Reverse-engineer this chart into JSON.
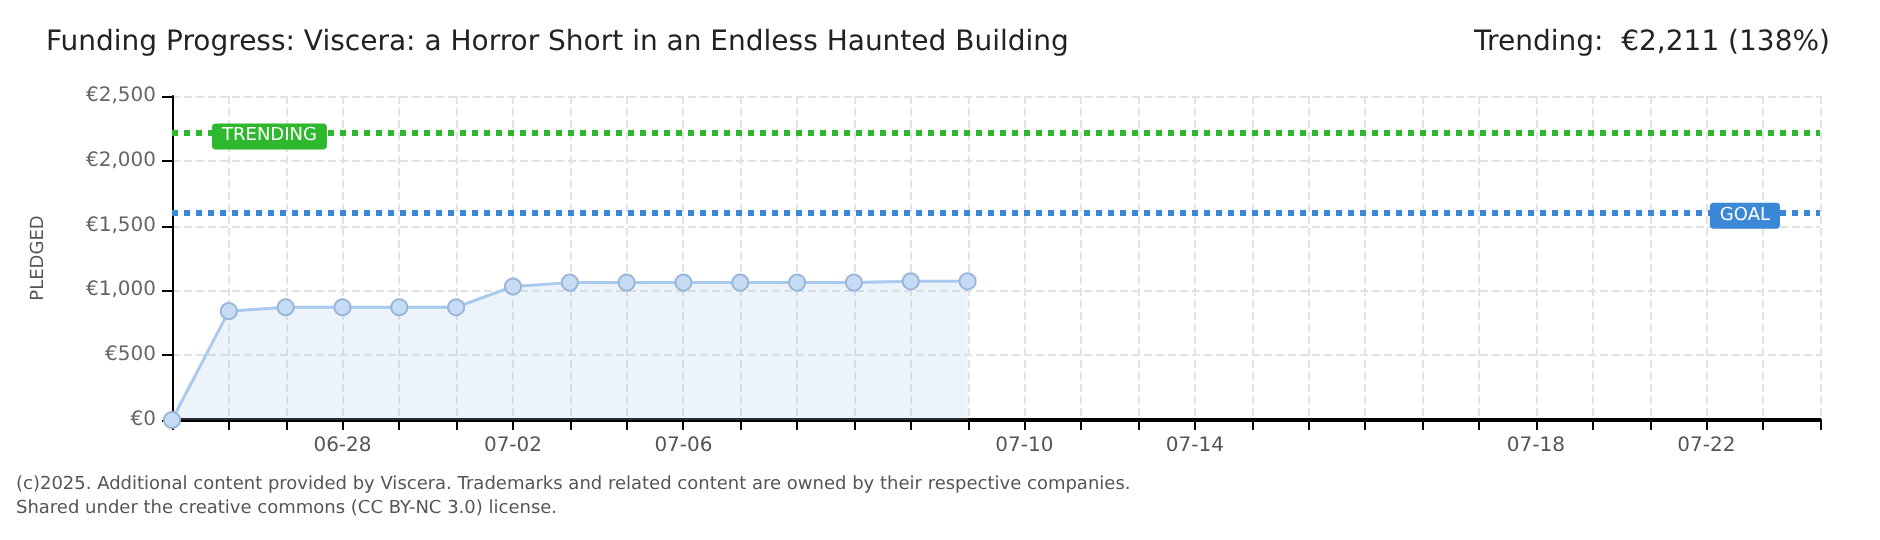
{
  "chart_data": {
    "type": "area",
    "title": "Funding Progress: Viscera: a Horror Short in an Endless Haunted Building",
    "subtitle": "Trending:  €2,211 (138%)",
    "ylabel": "PLEDGED",
    "categories": [
      null,
      null,
      null,
      "06-28",
      null,
      null,
      "07-02",
      null,
      null,
      "07-06",
      null,
      null,
      null,
      null,
      null,
      "07-10",
      null,
      null,
      "07-14",
      null,
      null,
      null,
      null,
      null,
      "07-18",
      null,
      null,
      "07-22",
      null,
      null
    ],
    "series": [
      {
        "color": "#a9c9ee",
        "values": [
          0,
          840,
          870,
          870,
          870,
          870,
          1030,
          1060,
          1060,
          1060,
          1060,
          1060,
          1060,
          1070,
          1070,
          null,
          null,
          null,
          null,
          null,
          null,
          null,
          null,
          null,
          null,
          null,
          null,
          null,
          null,
          null
        ]
      }
    ],
    "ylim": [
      0,
      2500
    ],
    "yticks": [
      {
        "value": 0,
        "label": "€0"
      },
      {
        "value": 500,
        "label": "€500"
      },
      {
        "value": 1000,
        "label": "€1,000"
      },
      {
        "value": 1500,
        "label": "€1,500"
      },
      {
        "value": 2000,
        "label": "€2,000"
      },
      {
        "value": 2500,
        "label": "€2,500"
      }
    ],
    "ref_lines": [
      {
        "axis": "y",
        "value": 2211,
        "label": "TRENDING",
        "color": "#2eb82e",
        "line_style": "dotted"
      },
      {
        "axis": "y",
        "value": 1600,
        "label": "GOAL",
        "color": "#3b87d8",
        "line_style": "dotted"
      }
    ],
    "grid": true,
    "marker": "circle",
    "annotations": [
      "(c)2025. Additional content provided by Viscera. Trademarks and related content are owned by their respective companies.",
      "Shared under the creative commons (CC BY-NC 3.0) license."
    ]
  }
}
